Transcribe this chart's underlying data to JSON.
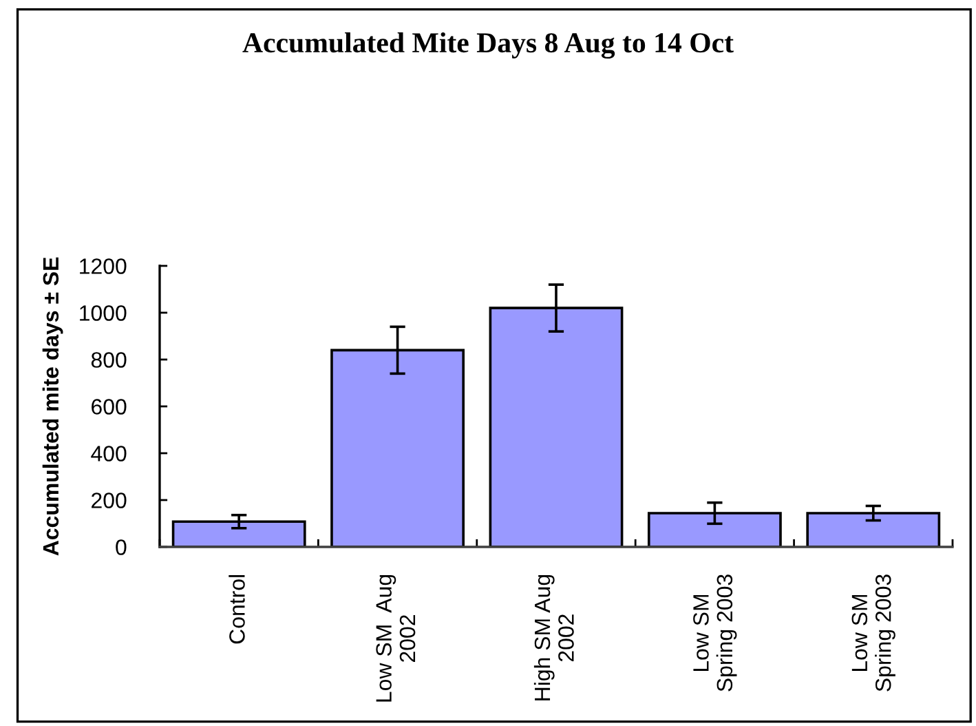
{
  "chart_data": {
    "type": "bar",
    "title": "Accumulated Mite Days 8 Aug to 14 Oct",
    "ylabel": "Accumulated mite days ± SE",
    "categories": [
      "Control",
      "Low SM  Aug\n2002",
      "High SM Aug\n2002",
      "Low SM\nSpring 2003",
      "Low SM\nSpring 2003"
    ],
    "values": [
      108,
      840,
      1020,
      144,
      144
    ],
    "errors": [
      28,
      100,
      100,
      45,
      31
    ],
    "color": "#9999ff",
    "ylim": [
      0,
      1200
    ],
    "yticks": [
      0,
      200,
      400,
      600,
      800,
      1000,
      1200
    ]
  }
}
